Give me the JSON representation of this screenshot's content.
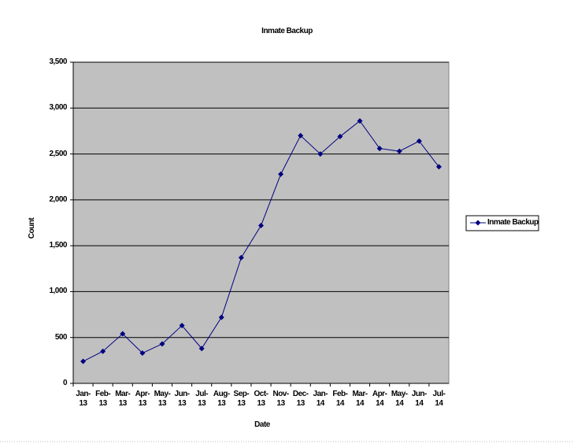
{
  "chart_data": {
    "type": "line",
    "title": "Inmate Backup",
    "x_label": "Date",
    "y_label": "Count",
    "categories": [
      "Jan-13",
      "Feb-13",
      "Mar-13",
      "Apr-13",
      "May-13",
      "Jun-13",
      "Jul-13",
      "Aug-13",
      "Sep-13",
      "Oct-13",
      "Nov-13",
      "Dec-13",
      "Jan-14",
      "Feb-14",
      "Mar-14",
      "Apr-14",
      "May-14",
      "Jun-14",
      "Jul-14"
    ],
    "series": [
      {
        "name": "Inmate Backup",
        "color": "#000080",
        "values": [
          240,
          350,
          540,
          330,
          430,
          630,
          380,
          720,
          1370,
          1720,
          2280,
          2700,
          2500,
          2690,
          2860,
          2560,
          2530,
          2640,
          2360
        ]
      }
    ],
    "ylim": [
      0,
      3500
    ],
    "yticks": [
      0,
      500,
      {
        "value": 1000,
        "label": "1,000"
      },
      {
        "value": 1500,
        "label": "1,500"
      },
      {
        "value": 2000,
        "label": "2,000"
      },
      {
        "value": 2500,
        "label": "2,500"
      },
      {
        "value": 3000,
        "label": "3,000"
      },
      {
        "value": 3500,
        "label": "3,500"
      }
    ],
    "grid": true,
    "legend": "right",
    "plot_background": "#c0c0c0"
  }
}
